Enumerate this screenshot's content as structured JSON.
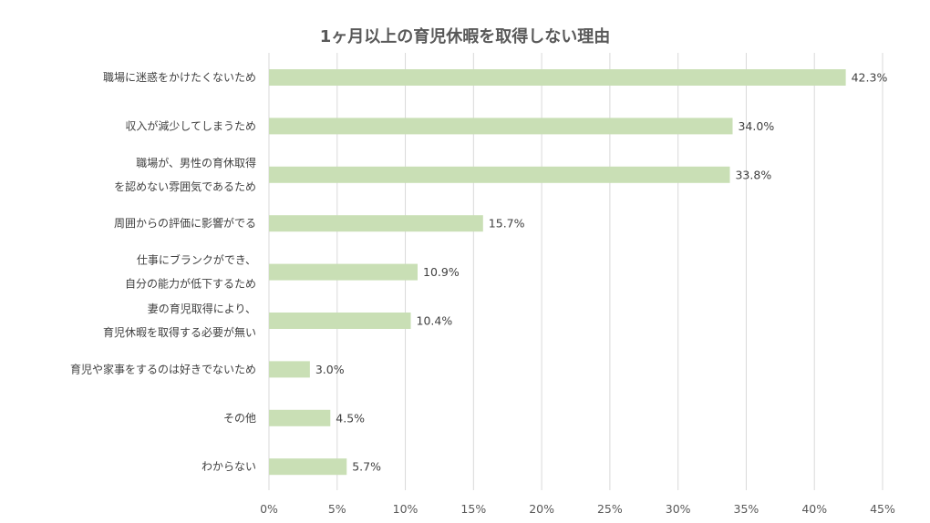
{
  "chart_data": {
    "type": "bar",
    "orientation": "horizontal",
    "title": "1ヶ月以上の育児休暇を取得しない理由",
    "xlabel": "",
    "ylabel": "",
    "xlim": [
      0,
      45
    ],
    "x_ticks": [
      0,
      5,
      10,
      15,
      20,
      25,
      30,
      35,
      40,
      45
    ],
    "x_tick_labels": [
      "0%",
      "5%",
      "10%",
      "15%",
      "20%",
      "25%",
      "30%",
      "35%",
      "40%",
      "45%"
    ],
    "grid": "vertical",
    "legend": "none",
    "bar_color": "#c9dfb5",
    "gridline_color": "#d9d9d9",
    "categories": [
      [
        "職場に迷惑をかけたくないため"
      ],
      [
        "収入が減少してしまうため"
      ],
      [
        "職場が、男性の育休取得",
        "を認めない雰囲気であるため"
      ],
      [
        "周囲からの評価に影響がでる"
      ],
      [
        "仕事にブランクができ、",
        "自分の能力が低下するため"
      ],
      [
        "妻の育児取得により、",
        "育児休暇を取得する必要が無い"
      ],
      [
        "育児や家事をするのは好きでないため"
      ],
      [
        "その他"
      ],
      [
        "わからない"
      ]
    ],
    "values": [
      42.3,
      34.0,
      33.8,
      15.7,
      10.9,
      10.4,
      3.0,
      4.5,
      5.7
    ],
    "value_labels": [
      "42.3%",
      "34.0%",
      "33.8%",
      "15.7%",
      "10.9%",
      "10.4%",
      "3.0%",
      "4.5%",
      "5.7%"
    ]
  }
}
